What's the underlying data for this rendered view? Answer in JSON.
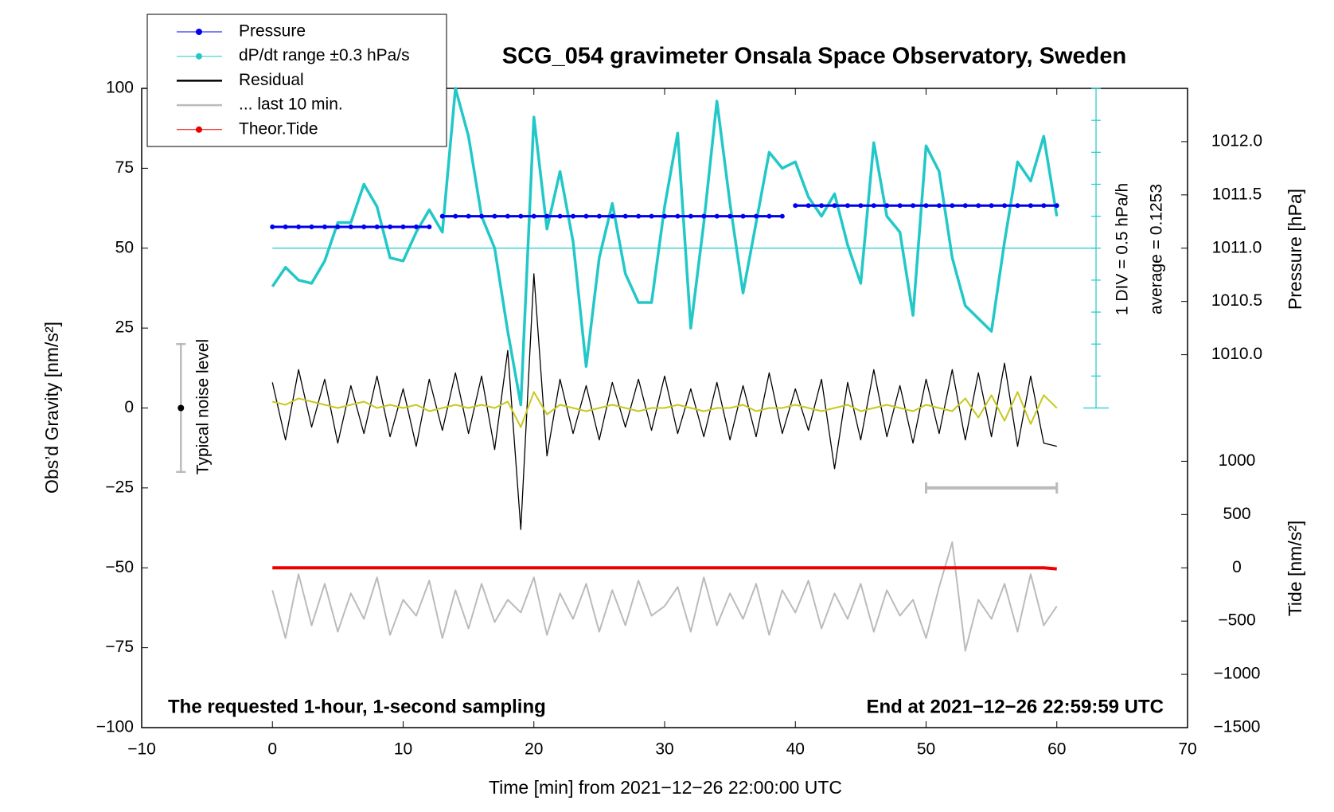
{
  "chart_data": {
    "type": "line",
    "title": "SCG_054 gravimeter Onsala Space Observatory, Sweden",
    "x_label": "Time [min] from 2021−12−26 22:00:00 UTC",
    "y_label": "Obs’d Gravity [nm/s²]",
    "y2_label": "Pressure [hPa]",
    "y3_label": "Tide [nm/s²]",
    "xlim": [
      -10,
      70
    ],
    "xticks": [
      {
        "value": -10,
        "label": "−10"
      },
      0,
      10,
      20,
      30,
      40,
      50,
      60,
      70
    ],
    "ylim": [
      -100,
      100
    ],
    "yticks": [
      {
        "value": -100,
        "label": "−100"
      },
      {
        "value": -75,
        "label": "−75"
      },
      {
        "value": -50,
        "label": "−50"
      },
      {
        "value": -25,
        "label": "−25"
      },
      0,
      25,
      50,
      75,
      100
    ],
    "y2lim": [
      1006.5,
      1012.5
    ],
    "y2ticks": [
      {
        "value": 1010,
        "label": "1010.0"
      },
      1010.5,
      {
        "value": 1011,
        "label": "1011.0"
      },
      1011.5,
      {
        "value": 1012,
        "label": "1012.0"
      }
    ],
    "y3lim": [
      -1500,
      4500
    ],
    "y3ticks": [
      {
        "value": -1500,
        "label": "−1500"
      },
      {
        "value": -1000,
        "label": "−1000"
      },
      {
        "value": -500,
        "label": "−500"
      },
      0,
      500,
      1000
    ],
    "x": [
      0,
      1,
      2,
      3,
      4,
      5,
      6,
      7,
      8,
      9,
      10,
      11,
      12,
      13,
      14,
      15,
      16,
      17,
      18,
      19,
      20,
      21,
      22,
      23,
      24,
      25,
      26,
      27,
      28,
      29,
      30,
      31,
      32,
      33,
      34,
      35,
      36,
      37,
      38,
      39,
      40,
      41,
      42,
      43,
      44,
      45,
      46,
      47,
      48,
      49,
      50,
      51,
      52,
      53,
      54,
      55,
      56,
      57,
      58,
      59,
      60
    ],
    "series": [
      {
        "name": "Pressure",
        "color": "#0000ee",
        "marker": true,
        "style": "dots",
        "axis": "y2",
        "values": [
          1011.2,
          1011.2,
          1011.2,
          1011.2,
          1011.2,
          1011.2,
          1011.2,
          1011.2,
          1011.2,
          1011.2,
          1011.2,
          1011.2,
          1011.2,
          1011.3,
          1011.3,
          1011.3,
          1011.3,
          1011.3,
          1011.3,
          1011.3,
          1011.3,
          1011.3,
          1011.3,
          1011.3,
          1011.3,
          1011.3,
          1011.3,
          1011.3,
          1011.3,
          1011.3,
          1011.3,
          1011.3,
          1011.3,
          1011.3,
          1011.3,
          1011.3,
          1011.3,
          1011.3,
          1011.3,
          1011.3,
          1011.4,
          1011.4,
          1011.4,
          1011.4,
          1011.4,
          1011.4,
          1011.4,
          1011.4,
          1011.4,
          1011.4,
          1011.4,
          1011.4,
          1011.4,
          1011.4,
          1011.4,
          1011.4,
          1011.4,
          1011.4,
          1011.4,
          1011.4,
          1011.4
        ]
      },
      {
        "name": "dP/dt range ±0.3 hPa/s",
        "color": "#22c8c8",
        "marker": true,
        "style": "line",
        "width": 3.5,
        "values": [
          38,
          44,
          40,
          39,
          46,
          58,
          58,
          70,
          63,
          47,
          46,
          55,
          62,
          55,
          100,
          85,
          60,
          50,
          24,
          1,
          91,
          56,
          74,
          52,
          13,
          47,
          64,
          42,
          33,
          33,
          63,
          86,
          25,
          58,
          96,
          64,
          36,
          58,
          80,
          75,
          77,
          66,
          60,
          67,
          51,
          39,
          83,
          60,
          55,
          29,
          82,
          74,
          47,
          32,
          28,
          24,
          52,
          77,
          71,
          85,
          60
        ]
      },
      {
        "name": "Residual",
        "color": "#000000",
        "marker": false,
        "style": "line",
        "width": 1.3,
        "values": [
          8,
          -10,
          12,
          -6,
          9,
          -11,
          7,
          -8,
          10,
          -9,
          6,
          -12,
          9,
          -7,
          11,
          -8,
          10,
          -13,
          18,
          -38,
          42,
          -15,
          9,
          -8,
          7,
          -10,
          8,
          -6,
          9,
          -7,
          10,
          -8,
          6,
          -9,
          8,
          -10,
          7,
          -9,
          11,
          -8,
          6,
          -7,
          9,
          -19,
          8,
          -10,
          12,
          -9,
          7,
          -11,
          9,
          -8,
          12,
          -10,
          11,
          -9,
          14,
          -12,
          10,
          -11,
          -12
        ]
      },
      {
        "color": "#c8c81e",
        "style": "line",
        "width": 2,
        "values": [
          2,
          1,
          3,
          2,
          1,
          0,
          1,
          2,
          0,
          1,
          0,
          1,
          -1,
          0,
          1,
          0,
          1,
          0,
          2,
          -6,
          5,
          -2,
          1,
          0,
          -1,
          0,
          1,
          0,
          -1,
          0,
          0,
          1,
          0,
          -1,
          0,
          0,
          1,
          -1,
          0,
          0,
          1,
          0,
          -1,
          0,
          1,
          -1,
          0,
          1,
          0,
          -1,
          1,
          0,
          -1,
          3,
          -3,
          4,
          -4,
          5,
          -5,
          4,
          0
        ]
      },
      {
        "name": "... last 10 min.",
        "color": "#bbbbbb",
        "marker": false,
        "style": "line",
        "width": 2,
        "values": [
          -57,
          -72,
          -52,
          -68,
          -55,
          -70,
          -58,
          -66,
          -53,
          -71,
          -60,
          -65,
          -54,
          -72,
          -57,
          -69,
          -55,
          -67,
          -60,
          -64,
          -53,
          -71,
          -58,
          -66,
          -55,
          -70,
          -57,
          -68,
          -54,
          -65,
          -62,
          -56,
          -70,
          -53,
          -68,
          -58,
          -66,
          -55,
          -71,
          -57,
          -64,
          -54,
          -69,
          -58,
          -66,
          -55,
          -70,
          -57,
          -65,
          -60,
          -72,
          -56,
          -42,
          -76,
          -60,
          -66,
          -55,
          -70,
          -52,
          -68,
          -62
        ]
      },
      {
        "name": "Theor.Tide",
        "color": "#ee0000",
        "marker": true,
        "style": "line",
        "width": 4,
        "axis": "y3",
        "values": [
          0,
          0,
          0,
          0,
          0,
          0,
          0,
          0,
          0,
          0,
          0,
          0,
          0,
          0,
          0,
          0,
          0,
          0,
          0,
          0,
          0,
          0,
          0,
          0,
          0,
          0,
          0,
          0,
          0,
          0,
          0,
          0,
          0,
          0,
          0,
          0,
          0,
          0,
          0,
          0,
          0,
          0,
          0,
          0,
          0,
          0,
          0,
          0,
          0,
          0,
          0,
          0,
          0,
          0,
          0,
          0,
          0,
          0,
          0,
          0,
          -10
        ]
      }
    ],
    "dpdt_zero": 50,
    "dpdt_axis": {
      "x": 63,
      "ticks": [
        0,
        10,
        20,
        30,
        40,
        50,
        60,
        70,
        80,
        90,
        100
      ]
    },
    "noise_bar": {
      "x": -7,
      "range": [
        -20,
        20
      ],
      "center": 0
    },
    "window_bar": {
      "x": [
        50,
        60
      ],
      "y": -25
    },
    "annotations": {
      "sampling": "The requested 1-hour, 1-second sampling",
      "end": "End at 2021−12−26 22:59:59 UTC",
      "div": "1 DIV = 0.5 hPa/h",
      "average": "average = 0.1253",
      "noise": "Typical noise level"
    }
  }
}
